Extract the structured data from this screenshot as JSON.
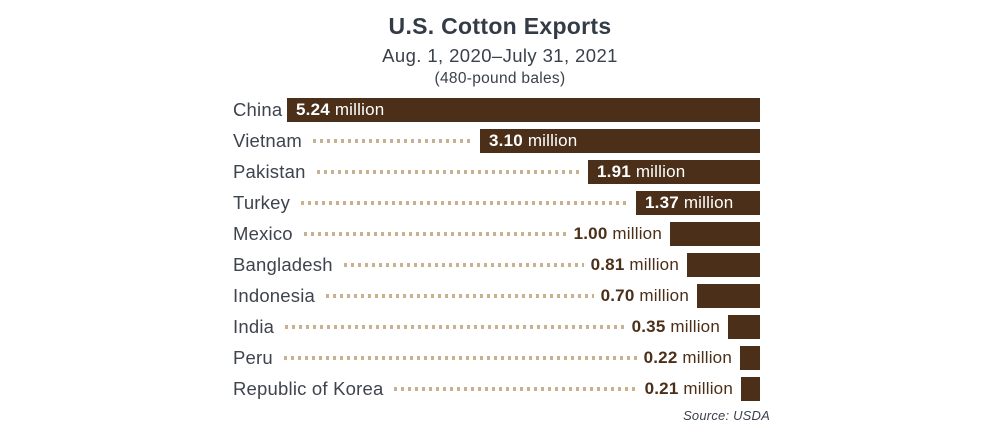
{
  "header": {
    "title": "U.S. Cotton Exports",
    "subtitle": "Aug. 1, 2020–July 31, 2021",
    "unit_note": "(480-pound bales)"
  },
  "footer": {
    "source": "Source: USDA"
  },
  "colors": {
    "bar": "#4B2F18",
    "dots": "#C7B190",
    "title": "#333B46",
    "label": "#3E444E",
    "value_outside": "#4B2F18",
    "value_inside": "#FFFFFF"
  },
  "chart_data": {
    "type": "bar",
    "orientation": "horizontal",
    "bars_right_aligned": true,
    "title": "U.S. Cotton Exports",
    "subtitle": "Aug. 1, 2020–July 31, 2021",
    "unit": "millions of 480-pound bales",
    "xlim": [
      0,
      5.24
    ],
    "grid": false,
    "legend": false,
    "source": "Source: USDA",
    "categories": [
      "China",
      "Vietnam",
      "Pakistan",
      "Turkey",
      "Mexico",
      "Bangladesh",
      "Indonesia",
      "India",
      "Peru",
      "Republic of Korea"
    ],
    "values": [
      5.24,
      3.1,
      1.91,
      1.37,
      1.0,
      0.81,
      0.7,
      0.35,
      0.22,
      0.21
    ],
    "value_labels": [
      "5.24 million",
      "3.10 million",
      "1.91 million",
      "1.37 million",
      "1.00 million",
      "0.81 million",
      "0.70 million",
      "0.35 million",
      "0.22 million",
      "0.21 million"
    ],
    "rows": [
      {
        "country": "China",
        "value": 5.24,
        "value_text": "5.24",
        "unit_text": " million",
        "value_inside_bar": true,
        "leader_dots": false
      },
      {
        "country": "Vietnam",
        "value": 3.1,
        "value_text": "3.10",
        "unit_text": " million",
        "value_inside_bar": true,
        "leader_dots": true
      },
      {
        "country": "Pakistan",
        "value": 1.91,
        "value_text": "1.91",
        "unit_text": " million",
        "value_inside_bar": true,
        "leader_dots": true
      },
      {
        "country": "Turkey",
        "value": 1.37,
        "value_text": "1.37",
        "unit_text": " million",
        "value_inside_bar": true,
        "leader_dots": true
      },
      {
        "country": "Mexico",
        "value": 1.0,
        "value_text": "1.00",
        "unit_text": " million",
        "value_inside_bar": false,
        "leader_dots": true
      },
      {
        "country": "Bangladesh",
        "value": 0.81,
        "value_text": "0.81",
        "unit_text": " million",
        "value_inside_bar": false,
        "leader_dots": true
      },
      {
        "country": "Indonesia",
        "value": 0.7,
        "value_text": "0.70",
        "unit_text": " million",
        "value_inside_bar": false,
        "leader_dots": true
      },
      {
        "country": "India",
        "value": 0.35,
        "value_text": "0.35",
        "unit_text": " million",
        "value_inside_bar": false,
        "leader_dots": true
      },
      {
        "country": "Peru",
        "value": 0.22,
        "value_text": "0.22",
        "unit_text": " million",
        "value_inside_bar": false,
        "leader_dots": true
      },
      {
        "country": "Republic of Korea",
        "value": 0.21,
        "value_text": "0.21",
        "unit_text": " million",
        "value_inside_bar": false,
        "leader_dots": true
      }
    ]
  }
}
